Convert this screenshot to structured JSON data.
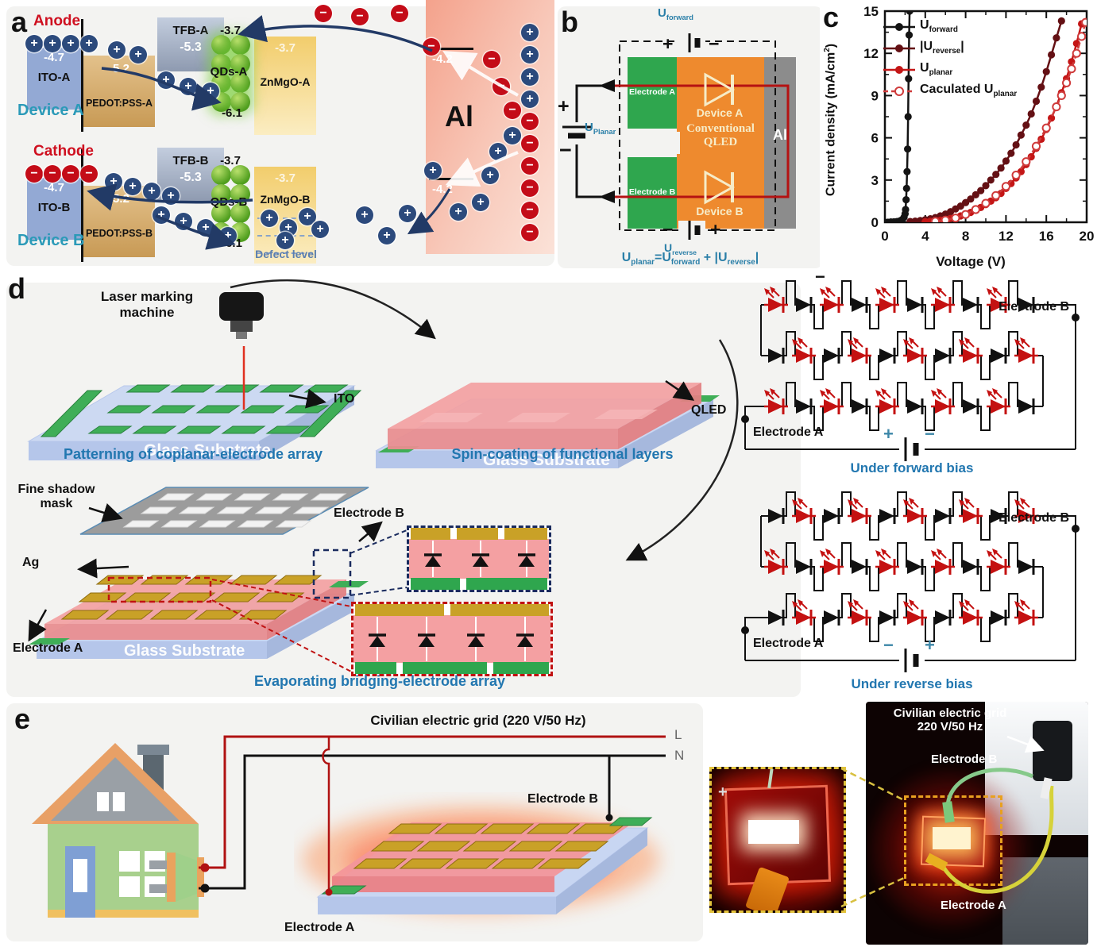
{
  "sym": {
    "plus": "+",
    "minus": "−"
  },
  "panel_a": {
    "tag": "a",
    "al": "Al",
    "a": {
      "electrode": "Anode",
      "device": "Device A",
      "ito_level": "-4.7",
      "ito": "ITO-A",
      "pedot_level": "-5.2",
      "pedot": "PEDOT:PSS-A",
      "tfb": "TFB-A",
      "tfb_level": "-5.3",
      "qd_top": "-3.7",
      "qd": "QDs-A",
      "qd_bottom": "-6.1",
      "znmgo_level": "-3.7",
      "znmgo": "ZnMgO-A",
      "al_level": "-4.2"
    },
    "b": {
      "electrode": "Cathode",
      "device": "Device B",
      "ito_level": "-4.7",
      "ito": "ITO-B",
      "pedot_level": "-5.2",
      "pedot": "PEDOT:PSS-B",
      "tfb": "TFB-B",
      "tfb_level": "-5.3",
      "qd_top": "-3.7",
      "qd": "QDs-B",
      "qd_bottom": "-6.1",
      "znmgo_level": "-3.7",
      "znmgo": "ZnMgO-B",
      "al_level": "-4.2",
      "defect": "Defect level"
    }
  },
  "panel_b": {
    "tag": "b",
    "u_forward": {
      "base": "U",
      "sub": "forward"
    },
    "u_reverse": {
      "base": "U",
      "sub": "reverse"
    },
    "u_planar": {
      "base": "U",
      "sub": "Planar"
    },
    "electrode_a": "Electrode A",
    "electrode_b": "Electrode B",
    "stack": {
      "line1": "Conventional",
      "line2": "QLED",
      "al": "Al",
      "device_a": "Device A",
      "device_b": "Device B"
    },
    "equation": {
      "b1": "U",
      "s1": "planar",
      "b2": "=U",
      "s2": "forward",
      "b3": " + |U",
      "s3": "reverse",
      "b4": "|"
    }
  },
  "panel_c": {
    "tag": "c"
  },
  "chart_data": {
    "type": "line",
    "title": "",
    "xlabel": "Voltage (V)",
    "ylabel": "Current density (mA/cm2)",
    "ylabel_parts": {
      "base": "Current density (mA/cm",
      "sup": "2",
      "end": ")"
    },
    "xlim": [
      0,
      20
    ],
    "ylim": [
      0,
      15
    ],
    "xticks": [
      0,
      4,
      8,
      12,
      16,
      20
    ],
    "yticks": [
      0,
      3,
      6,
      9,
      12,
      15
    ],
    "grid": false,
    "legend_position": "top-left",
    "series": [
      {
        "name": "U_forward",
        "label_prefix": "U",
        "label_sub": "forward",
        "label_suffix": "",
        "color": "#141414",
        "marker": "filled",
        "dash": false,
        "x": [
          0,
          0.3,
          0.6,
          0.9,
          1.2,
          1.5,
          1.7,
          1.9,
          2.0,
          2.05,
          2.1,
          2.15,
          2.2,
          2.25,
          2.3,
          2.35,
          2.4,
          2.45
        ],
        "y": [
          0,
          0,
          0.02,
          0.03,
          0.05,
          0.1,
          0.18,
          0.35,
          0.6,
          0.9,
          1.6,
          2.4,
          3.6,
          5.2,
          7.5,
          10.2,
          13.3,
          15
        ]
      },
      {
        "name": "|U_reverse|",
        "label_prefix": "|U",
        "label_sub": "reverse",
        "label_suffix": "|",
        "color": "#641014",
        "marker": "filled",
        "dash": false,
        "x": [
          2.5,
          3,
          3.5,
          4,
          4.5,
          5,
          5.5,
          6,
          6.5,
          7,
          7.5,
          8,
          8.5,
          9,
          9.5,
          10,
          10.5,
          11,
          11.5,
          12,
          12.5,
          13,
          13.5,
          14,
          14.5,
          15,
          15.5,
          16,
          16.5,
          17,
          17.5
        ],
        "y": [
          0.05,
          0.08,
          0.12,
          0.18,
          0.25,
          0.33,
          0.45,
          0.58,
          0.75,
          0.95,
          1.15,
          1.4,
          1.65,
          1.95,
          2.25,
          2.6,
          3.0,
          3.4,
          3.85,
          4.35,
          4.9,
          5.5,
          6.2,
          6.9,
          7.7,
          8.6,
          9.6,
          10.7,
          11.9,
          13.1,
          14.3
        ]
      },
      {
        "name": "U_planar",
        "label_prefix": "U",
        "label_sub": "planar",
        "label_suffix": "",
        "color": "#c41616",
        "marker": "filled",
        "dash": false,
        "x": [
          4,
          4.5,
          5,
          5.5,
          6,
          6.5,
          7,
          7.5,
          8,
          8.5,
          9,
          9.5,
          10,
          10.5,
          11,
          11.5,
          12,
          12.5,
          13,
          13.5,
          14,
          14.5,
          15,
          15.5,
          16,
          16.5,
          17,
          17.5,
          18,
          18.5,
          19,
          19.5
        ],
        "y": [
          0.04,
          0.07,
          0.1,
          0.15,
          0.2,
          0.27,
          0.35,
          0.45,
          0.55,
          0.7,
          0.85,
          1.05,
          1.25,
          1.5,
          1.75,
          2.05,
          2.4,
          2.75,
          3.15,
          3.6,
          4.1,
          4.65,
          5.25,
          5.9,
          6.6,
          7.4,
          8.25,
          9.2,
          10.2,
          11.4,
          12.7,
          14.1
        ]
      },
      {
        "name": "Caculated U_planar",
        "label_prefix": "Caculated U",
        "label_sub": "planar",
        "label_suffix": "",
        "color": "#cf3b3b",
        "marker": "open",
        "dash": true,
        "x": [
          5,
          6,
          7,
          8,
          9,
          10,
          11,
          12,
          13,
          14,
          15,
          16,
          17,
          17.5,
          18,
          18.5,
          19,
          19.5,
          19.9
        ],
        "y": [
          0.06,
          0.15,
          0.3,
          0.55,
          0.9,
          1.35,
          1.9,
          2.55,
          3.35,
          4.3,
          5.4,
          6.7,
          8.2,
          9.0,
          9.9,
          10.9,
          12.0,
          13.2,
          14.2
        ]
      }
    ]
  },
  "panel_d": {
    "tag": "d",
    "laser": {
      "line1": "Laser marking",
      "line2": "machine"
    },
    "glass": "Glass Substrate",
    "ito": "ITO",
    "qled": "QLED",
    "ag": "Ag",
    "mask": {
      "line1": "Fine shadow",
      "line2": "mask"
    },
    "electrode_a": "Electrode A",
    "electrode_b": "Electrode B",
    "captions": {
      "step1": "Patterning of coplanar-electrode array",
      "step2": "Spin-coating of functional layers",
      "step3": "Evaporating bridging-electrode array"
    },
    "circuits": {
      "top_minus": "−",
      "forward": {
        "caption": "Under forward bias",
        "electrode_a": "Electrode A",
        "electrode_b": "Electrode B",
        "polarity": [
          "+",
          "−"
        ],
        "rows": [
          [
            "R",
            "B",
            "R",
            "B",
            "R",
            "B",
            "R",
            "B",
            "R",
            "B"
          ],
          [
            "B",
            "R",
            "B",
            "R",
            "B",
            "R",
            "B",
            "R",
            "B",
            "R"
          ],
          [
            "R",
            "B",
            "R",
            "B",
            "R",
            "B",
            "R",
            "B",
            "R",
            "B"
          ]
        ]
      },
      "reverse": {
        "caption": "Under reverse bias",
        "electrode_a": "Electrode A",
        "electrode_b": "Electrode B",
        "polarity": [
          "−",
          "+"
        ],
        "rows": [
          [
            "B",
            "R",
            "B",
            "R",
            "B",
            "R",
            "B",
            "R",
            "B",
            "R"
          ],
          [
            "R",
            "B",
            "R",
            "B",
            "R",
            "B",
            "R",
            "B",
            "R",
            "B"
          ],
          [
            "B",
            "R",
            "B",
            "R",
            "B",
            "R",
            "B",
            "R",
            "B",
            "R"
          ]
        ]
      }
    }
  },
  "panel_e": {
    "tag": "e",
    "grid_label": "Civilian electric grid (220 V/50 Hz)",
    "l": "L",
    "n": "N",
    "electrode_a": "Electrode A",
    "electrode_b": "Electrode B",
    "photo": {
      "grid_line1": "Civilian electric grid",
      "grid_line2": "220 V/50 Hz",
      "electrode_a": "Electrode A",
      "electrode_b": "Electrode B",
      "plus": "+"
    }
  }
}
